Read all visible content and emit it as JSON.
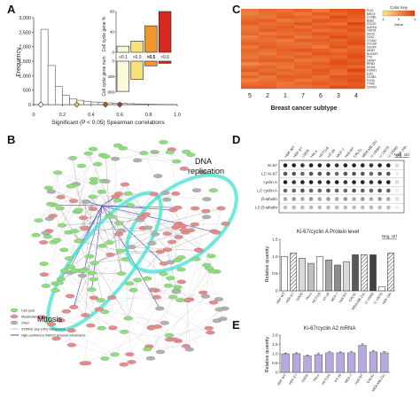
{
  "panels": {
    "a": {
      "letter": "A",
      "chart_data": {
        "type": "bar",
        "xlabel": "Significant (P < 0.05) Spearman correlations",
        "ylabel": "Frequency",
        "xlim": [
          0,
          1
        ],
        "ylim": [
          0,
          3000
        ],
        "x_ticks": [
          "0",
          "0.2",
          "0.4",
          "0.6",
          "0.8",
          "1.0"
        ],
        "y_ticks": [
          "0",
          "500",
          "1,000",
          "1,500",
          "2,000",
          "2,500",
          "3,000"
        ],
        "bin_width": 0.05,
        "bin_starts": [
          0.05,
          0.1,
          0.15,
          0.2,
          0.25,
          0.3,
          0.35,
          0.4,
          0.45,
          0.5,
          0.55,
          0.6,
          0.65,
          0.7,
          0.75,
          0.8,
          0.85,
          0.9,
          0.95
        ],
        "values": [
          2600,
          1350,
          620,
          320,
          200,
          150,
          115,
          90,
          75,
          60,
          50,
          40,
          32,
          25,
          18,
          12,
          8,
          5,
          3
        ],
        "markers": [
          {
            "x": 0.05,
            "color": "#ffffff"
          },
          {
            "x": 0.3,
            "color": "#f2c94c"
          },
          {
            "x": 0.5,
            "color": "#d35400"
          },
          {
            "x": 0.6,
            "color": "#c0392b"
          }
        ]
      },
      "inset": {
        "type": "bar",
        "categories": [
          ">0.1",
          ">0.3",
          ">0.5",
          ">0.6"
        ],
        "upper_ylabel": "Cell cycle gene %",
        "upper_ticks": [
          "0",
          "40",
          "80"
        ],
        "upper_ylim": [
          0,
          80
        ],
        "upper_values": [
          12,
          22,
          52,
          80
        ],
        "lower_ylabel": "Cell cycle gene num",
        "lower_ticks": [
          "0",
          "400",
          "800"
        ],
        "lower_ylim": [
          0,
          800
        ],
        "lower_values": [
          780,
          470,
          120,
          55
        ],
        "colors": [
          "#fbf8dc",
          "#f7e27a",
          "#f0982c",
          "#d7281f"
        ]
      }
    },
    "b": {
      "letter": "B",
      "label_dna": "DNA",
      "label_replication": "replication",
      "label_mitosis": "Mitosis",
      "legend": [
        {
          "label": "Cell cycle",
          "color": "#8be07c"
        },
        {
          "label": "Metabolism",
          "color": "#e88a8a"
        },
        {
          "label": "Other",
          "color": "#b0b0b0"
        },
        {
          "label": "STRING (top 10%) interactions",
          "color": "#999999"
        },
        {
          "label": "High-confidence INDIGT physical interactions",
          "color": "#4a4abf"
        }
      ],
      "node_colors": {
        "green": "#8be07c",
        "red": "#e88a8a",
        "gray": "#b0b0b0",
        "highlight": "#40e0d0",
        "blue": "#4a4abf"
      }
    },
    "c": {
      "letter": "C",
      "xlabel": "Breast cancer subtype",
      "x_ticks": [
        "5",
        "2",
        "1",
        "7",
        "6",
        "3",
        "4"
      ],
      "legend_title": "Color Key",
      "legend_ticks": [
        "-1",
        "0",
        "1"
      ],
      "legend_sublabel": "Value",
      "genes": [
        "PLK1",
        "BIRC5",
        "CCNB1",
        "BUB1",
        "CDC20",
        "AURKA",
        "TOP2A",
        "KIF2C",
        "CDK1",
        "CCNA2",
        "CDCA8",
        "CENPF",
        "MKI67",
        "NUSAP1",
        "TTK",
        "ZWINT",
        "RRM2",
        "MCM2",
        "FOXM1",
        "E2F1",
        "CCNE1",
        "PCNA",
        "TYMS",
        "CDKN3"
      ],
      "chart_data": {
        "type": "heatmap",
        "x": [
          "5",
          "2",
          "1",
          "7",
          "6",
          "3",
          "4"
        ],
        "y": [
          "PLK1",
          "BIRC5",
          "CCNB1",
          "BUB1",
          "CDC20",
          "AURKA",
          "TOP2A",
          "KIF2C",
          "CDK1",
          "CCNA2",
          "CDCA8",
          "CENPF",
          "MKI67",
          "NUSAP1",
          "TTK",
          "ZWINT",
          "RRM2",
          "MCM2",
          "FOXM1",
          "E2F1",
          "CCNE1",
          "PCNA",
          "TYMS",
          "CDKN3"
        ],
        "zlim": [
          -1,
          1
        ],
        "values": [
          [
            0.3,
            0.5,
            0.4,
            0.6,
            0.3,
            0.7,
            0.8
          ],
          [
            0.2,
            0.4,
            0.5,
            0.3,
            0.6,
            0.5,
            0.7
          ],
          [
            0.4,
            0.3,
            0.6,
            0.5,
            0.4,
            0.8,
            0.6
          ],
          [
            0.5,
            0.6,
            0.3,
            0.4,
            0.7,
            0.6,
            0.5
          ],
          [
            0.6,
            0.4,
            0.5,
            0.7,
            0.5,
            0.4,
            0.9
          ],
          [
            0.3,
            0.5,
            0.6,
            0.4,
            0.6,
            0.7,
            0.6
          ],
          [
            0.4,
            0.6,
            0.5,
            0.6,
            0.4,
            0.5,
            0.7
          ],
          [
            0.5,
            0.3,
            0.4,
            0.5,
            0.7,
            0.6,
            0.5
          ],
          [
            0.2,
            0.5,
            0.6,
            0.3,
            0.5,
            0.8,
            0.6
          ],
          [
            0.4,
            0.4,
            0.3,
            0.6,
            0.6,
            0.5,
            0.7
          ],
          [
            0.6,
            0.5,
            0.4,
            0.4,
            0.5,
            0.6,
            0.8
          ],
          [
            0.3,
            0.6,
            0.5,
            0.5,
            0.3,
            0.7,
            0.5
          ],
          [
            0.5,
            0.4,
            0.6,
            0.7,
            0.6,
            0.4,
            0.6
          ],
          [
            0.4,
            0.3,
            0.5,
            0.4,
            0.7,
            0.6,
            0.7
          ],
          [
            0.3,
            0.5,
            0.4,
            0.6,
            0.5,
            0.5,
            0.8
          ],
          [
            0.5,
            0.6,
            0.6,
            0.3,
            0.4,
            0.7,
            0.6
          ],
          [
            0.1,
            0.3,
            0.4,
            0.5,
            0.6,
            0.8,
            0.7
          ],
          [
            0.4,
            0.5,
            0.3,
            0.6,
            0.5,
            0.6,
            0.5
          ],
          [
            0.6,
            0.4,
            0.5,
            0.4,
            0.7,
            0.5,
            0.9
          ],
          [
            0.3,
            0.6,
            0.4,
            0.5,
            0.6,
            0.4,
            0.6
          ],
          [
            0.5,
            0.3,
            0.6,
            0.6,
            0.4,
            0.7,
            0.7
          ],
          [
            0.2,
            0.4,
            0.5,
            0.3,
            0.5,
            0.6,
            0.8
          ],
          [
            0.4,
            0.5,
            0.3,
            0.5,
            0.6,
            0.5,
            0.6
          ],
          [
            0.6,
            0.6,
            0.4,
            0.4,
            0.5,
            0.8,
            0.7
          ]
        ]
      }
    },
    "d": {
      "letter": "D",
      "neg_ctrl": "Neg. ctrl",
      "neg_ctrl_bar": "Neg. ctrl",
      "blot_rows": [
        "Ki-67",
        "LC Ki-67",
        "cyclin A",
        "LC cyclin A",
        "β-tubulin",
        "LC β-tubulin"
      ],
      "blot_dots": [
        [
          "#222",
          "#222",
          "#333",
          "#222",
          "#222",
          "#222",
          "#333",
          "#222",
          "#222",
          "#222",
          "#333",
          "#222",
          "#222",
          "#ddd"
        ],
        [
          "#555",
          "#555",
          "#666",
          "#555",
          "#555",
          "#555",
          "#666",
          "#555",
          "#555",
          "#555",
          "#666",
          "#555",
          "#555",
          "#eee"
        ],
        [
          "#222",
          "#333",
          "#222",
          "#222",
          "#333",
          "#222",
          "#222",
          "#333",
          "#222",
          "#222",
          "#333",
          "#222",
          "#222",
          "#ddd"
        ],
        [
          "#666",
          "#666",
          "#555",
          "#666",
          "#666",
          "#555",
          "#666",
          "#666",
          "#555",
          "#666",
          "#666",
          "#555",
          "#666",
          "#eee"
        ],
        [
          "#aaa",
          "#999",
          "#aaa",
          "#999",
          "#aaa",
          "#999",
          "#aaa",
          "#999",
          "#aaa",
          "#999",
          "#aaa",
          "#999",
          "#aaa",
          "#ddd"
        ],
        [
          "#bbb",
          "#bbb",
          "#bbb",
          "#bbb",
          "#bbb",
          "#bbb",
          "#bbb",
          "#bbb",
          "#bbb",
          "#bbb",
          "#bbb",
          "#bbb",
          "#bbb",
          "#eee"
        ]
      ],
      "blot_columns": [
        "HDF WT",
        "HDF E7",
        "U2OS",
        "HeLa",
        "HCT116",
        "HT-29",
        "MCF-7",
        "Hs578T",
        "CAL51",
        "MDA-MB-231",
        "U 1308S",
        "U 1307S",
        "U 1304S",
        "HDF 24h"
      ],
      "chart_data": {
        "type": "bar",
        "title": "Ki-67/cyclin A Protein level",
        "ylabel": "Relative quantity",
        "ylim": [
          0,
          1.5
        ],
        "y_ticks": [
          "0",
          "0.5",
          "1.0",
          "1.5"
        ],
        "categories": [
          "HDF WT",
          "HDF E7",
          "U2OS",
          "HeLa",
          "HCT116",
          "HT-29",
          "MCF-7",
          "Hs578T",
          "CAL51",
          "MDA-MB-231",
          "U 1308S",
          "U 1307S",
          "HDF 24h"
        ],
        "values": [
          1.0,
          1.1,
          0.95,
          0.8,
          1.0,
          0.9,
          0.75,
          0.85,
          1.05,
          1.05,
          1.05,
          0.12,
          1.1
        ],
        "fills": [
          "#ffffff",
          "hatch",
          "#d9d9d9",
          "#bfbfbf",
          "#ffffff",
          "#a6a6a6",
          "#8c8c8c",
          "#d9d9d9",
          "#595959",
          "hatch",
          "#404040",
          "#ffffff",
          "hatch"
        ]
      }
    },
    "e": {
      "letter": "E",
      "chart_data": {
        "type": "bar",
        "title": "Ki-67/cyclin A2 mRNA",
        "ylabel": "Relative quantity",
        "ylim": [
          0,
          2.0
        ],
        "y_ticks": [
          "0",
          "0.5",
          "1.0",
          "1.5",
          "2.0"
        ],
        "categories": [
          "HDF WT",
          "HDF E7",
          "U2OS",
          "HeLa",
          "HCT116",
          "HT-29",
          "MCF-7",
          "Hs578T",
          "CAL51",
          "MDA-MB-231"
        ],
        "values": [
          1.0,
          1.0,
          0.88,
          0.95,
          1.05,
          1.05,
          1.05,
          1.45,
          1.1,
          1.05
        ],
        "errors": [
          0.04,
          0.05,
          0.05,
          0.06,
          0.06,
          0.05,
          0.06,
          0.08,
          0.06,
          0.07
        ],
        "color": "#b8a8e0"
      }
    }
  }
}
